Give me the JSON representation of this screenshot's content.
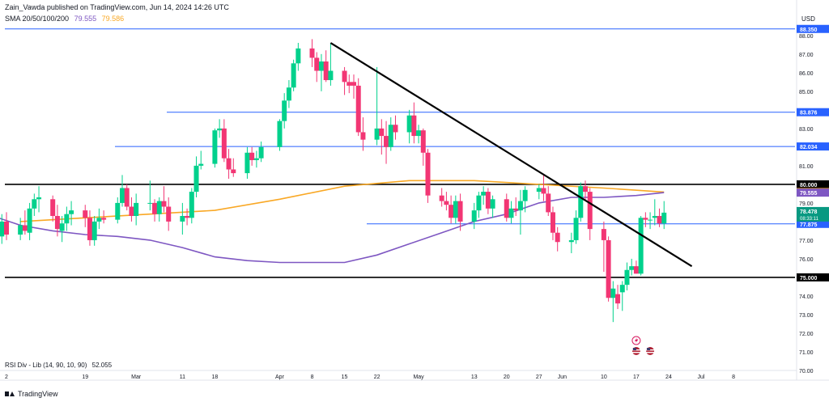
{
  "header": {
    "attribution": "Zain_Vawda published on TradingView.com, Jun 14, 2024 14:26 UTC",
    "sma_label": "SMA 20/50/100/200",
    "sma_value_1": "79.555",
    "sma_value_2": "79.586"
  },
  "indicator": {
    "rsi_label": "RSI Div - Lib (14, 90, 10, 90)",
    "rsi_value": "52.055"
  },
  "footer": {
    "brand": "TradingView"
  },
  "colors": {
    "up": "#26a69a",
    "up_fill": "#00d18c",
    "down": "#f23674",
    "sma_fast": "#7e57c2",
    "sma_slow": "#f9a825",
    "hline_blue": "#2962ff",
    "hline_black": "#000000",
    "price_tag": "#089981"
  },
  "chart_data": {
    "type": "candlestick",
    "currency": "USD",
    "y_range": [
      70.0,
      88.6
    ],
    "y_ticks": [
      70.0,
      71.0,
      72.0,
      73.0,
      74.0,
      75.0,
      76.0,
      77.0,
      78.0,
      79.0,
      80.0,
      81.0,
      82.0,
      83.0,
      84.0,
      85.0,
      86.0,
      87.0,
      88.0
    ],
    "x_ticks": [
      {
        "label": "2",
        "date": "2024-02-02"
      },
      {
        "label": "19",
        "date": "2024-02-19"
      },
      {
        "label": "Mar",
        "date": "2024-03-01"
      },
      {
        "label": "11",
        "date": "2024-03-11"
      },
      {
        "label": "18",
        "date": "2024-03-18"
      },
      {
        "label": "Apr",
        "date": "2024-04-01"
      },
      {
        "label": "8",
        "date": "2024-04-08"
      },
      {
        "label": "15",
        "date": "2024-04-15"
      },
      {
        "label": "22",
        "date": "2024-04-22"
      },
      {
        "label": "May",
        "date": "2024-05-01"
      },
      {
        "label": "13",
        "date": "2024-05-13"
      },
      {
        "label": "20",
        "date": "2024-05-20"
      },
      {
        "label": "27",
        "date": "2024-05-27"
      },
      {
        "label": "Jun",
        "date": "2024-06-01"
      },
      {
        "label": "10",
        "date": "2024-06-10"
      },
      {
        "label": "17",
        "date": "2024-06-17"
      },
      {
        "label": "24",
        "date": "2024-06-24"
      },
      {
        "label": "Jul",
        "date": "2024-07-01"
      },
      {
        "label": "8",
        "date": "2024-07-08"
      }
    ],
    "horizontal_levels": [
      {
        "price": 88.35,
        "label": "88.350",
        "color": "#2962ff"
      },
      {
        "price": 83.876,
        "label": "83.876",
        "color": "#2962ff"
      },
      {
        "price": 82.034,
        "label": "82.034",
        "color": "#2962ff"
      },
      {
        "price": 80.0,
        "label": "80.000",
        "color": "#000000"
      },
      {
        "price": 77.875,
        "label": "77.875",
        "color": "#2962ff"
      },
      {
        "price": 75.0,
        "label": "75.000",
        "color": "#000000"
      }
    ],
    "price_tags": [
      {
        "price": 79.586,
        "label": "79.586",
        "color": "#f9a825"
      },
      {
        "price": 79.555,
        "label": "79.555",
        "color": "#7e57c2"
      },
      {
        "price": 78.478,
        "label": "78.478",
        "sub": "08:33:11",
        "color": "#089981"
      }
    ],
    "trendline": {
      "start": {
        "date": "2024-04-12",
        "price": 87.6
      },
      "end": {
        "date": "2024-06-29",
        "price": 75.6
      }
    },
    "candles": [
      {
        "date": "2024-01-30",
        "o": 78.4,
        "h": 78.8,
        "l": 77.2,
        "c": 77.5
      },
      {
        "date": "2024-01-31",
        "o": 77.5,
        "h": 78.2,
        "l": 76.9,
        "c": 77.2
      },
      {
        "date": "2024-02-01",
        "o": 77.2,
        "h": 78.4,
        "l": 76.8,
        "c": 78.0
      },
      {
        "date": "2024-02-02",
        "o": 78.0,
        "h": 78.5,
        "l": 77.0,
        "c": 77.3
      },
      {
        "date": "2024-02-05",
        "o": 77.3,
        "h": 78.2,
        "l": 77.0,
        "c": 77.8
      },
      {
        "date": "2024-02-06",
        "o": 77.8,
        "h": 78.6,
        "l": 77.3,
        "c": 77.5
      },
      {
        "date": "2024-02-07",
        "o": 77.4,
        "h": 79.0,
        "l": 77.0,
        "c": 78.7
      },
      {
        "date": "2024-02-08",
        "o": 78.7,
        "h": 79.5,
        "l": 78.3,
        "c": 79.2
      },
      {
        "date": "2024-02-09",
        "o": 79.2,
        "h": 79.9,
        "l": 78.5,
        "c": 79.3
      },
      {
        "date": "2024-02-12",
        "o": 79.2,
        "h": 79.4,
        "l": 78.0,
        "c": 78.3
      },
      {
        "date": "2024-02-13",
        "o": 78.3,
        "h": 78.9,
        "l": 77.2,
        "c": 77.6
      },
      {
        "date": "2024-02-14",
        "o": 77.5,
        "h": 78.3,
        "l": 76.9,
        "c": 77.9
      },
      {
        "date": "2024-02-15",
        "o": 77.9,
        "h": 78.8,
        "l": 77.5,
        "c": 78.4
      },
      {
        "date": "2024-02-16",
        "o": 78.4,
        "h": 79.1,
        "l": 77.8,
        "c": 78.6
      },
      {
        "date": "2024-02-19",
        "o": 78.6,
        "h": 78.9,
        "l": 77.7,
        "c": 78.2
      },
      {
        "date": "2024-02-20",
        "o": 78.2,
        "h": 78.6,
        "l": 76.7,
        "c": 77.0
      },
      {
        "date": "2024-02-21",
        "o": 77.0,
        "h": 78.3,
        "l": 76.7,
        "c": 78.0
      },
      {
        "date": "2024-02-22",
        "o": 78.0,
        "h": 78.7,
        "l": 77.6,
        "c": 78.2
      },
      {
        "date": "2024-02-23",
        "o": 78.2,
        "h": 78.6,
        "l": 77.9,
        "c": 78.1
      },
      {
        "date": "2024-02-26",
        "o": 78.1,
        "h": 79.3,
        "l": 77.9,
        "c": 79.0
      },
      {
        "date": "2024-02-27",
        "o": 79.0,
        "h": 80.5,
        "l": 78.8,
        "c": 79.8
      },
      {
        "date": "2024-02-28",
        "o": 79.8,
        "h": 80.0,
        "l": 78.6,
        "c": 78.8
      },
      {
        "date": "2024-02-29",
        "o": 78.8,
        "h": 79.3,
        "l": 78.0,
        "c": 78.3
      },
      {
        "date": "2024-03-01",
        "o": 78.3,
        "h": 79.5,
        "l": 77.8,
        "c": 79.0
      },
      {
        "date": "2024-03-04",
        "o": 79.0,
        "h": 80.2,
        "l": 78.6,
        "c": 79.0
      },
      {
        "date": "2024-03-05",
        "o": 79.0,
        "h": 79.2,
        "l": 78.0,
        "c": 78.4
      },
      {
        "date": "2024-03-06",
        "o": 78.4,
        "h": 79.3,
        "l": 78.0,
        "c": 79.1
      },
      {
        "date": "2024-03-07",
        "o": 79.1,
        "h": 79.9,
        "l": 78.5,
        "c": 78.8
      },
      {
        "date": "2024-03-08",
        "o": 78.8,
        "h": 79.3,
        "l": 77.5,
        "c": 78.0
      },
      {
        "date": "2024-03-11",
        "o": 78.0,
        "h": 79.0,
        "l": 77.3,
        "c": 78.3
      },
      {
        "date": "2024-03-12",
        "o": 78.3,
        "h": 78.7,
        "l": 77.8,
        "c": 78.2
      },
      {
        "date": "2024-03-13",
        "o": 78.2,
        "h": 79.8,
        "l": 77.9,
        "c": 79.6
      },
      {
        "date": "2024-03-14",
        "o": 79.6,
        "h": 81.5,
        "l": 79.3,
        "c": 81.0
      },
      {
        "date": "2024-03-15",
        "o": 81.0,
        "h": 81.8,
        "l": 80.8,
        "c": 81.1
      },
      {
        "date": "2024-03-18",
        "o": 81.1,
        "h": 83.0,
        "l": 80.9,
        "c": 82.9
      },
      {
        "date": "2024-03-19",
        "o": 82.9,
        "h": 83.5,
        "l": 82.5,
        "c": 83.0
      },
      {
        "date": "2024-03-20",
        "o": 83.0,
        "h": 83.5,
        "l": 81.2,
        "c": 81.4
      },
      {
        "date": "2024-03-21",
        "o": 81.4,
        "h": 81.9,
        "l": 80.3,
        "c": 80.8
      },
      {
        "date": "2024-03-22",
        "o": 80.8,
        "h": 81.4,
        "l": 80.4,
        "c": 80.6
      },
      {
        "date": "2024-03-25",
        "o": 80.6,
        "h": 82.0,
        "l": 80.3,
        "c": 81.7
      },
      {
        "date": "2024-03-26",
        "o": 81.7,
        "h": 82.0,
        "l": 81.0,
        "c": 81.3
      },
      {
        "date": "2024-03-27",
        "o": 81.3,
        "h": 81.8,
        "l": 80.9,
        "c": 81.4
      },
      {
        "date": "2024-03-28",
        "o": 81.4,
        "h": 82.3,
        "l": 81.2,
        "c": 82.0
      },
      {
        "date": "2024-04-01",
        "o": 82.0,
        "h": 83.5,
        "l": 81.8,
        "c": 83.4
      },
      {
        "date": "2024-04-02",
        "o": 83.4,
        "h": 84.9,
        "l": 83.0,
        "c": 84.5
      },
      {
        "date": "2024-04-03",
        "o": 84.5,
        "h": 85.6,
        "l": 84.1,
        "c": 85.2
      },
      {
        "date": "2024-04-04",
        "o": 85.2,
        "h": 86.7,
        "l": 85.0,
        "c": 86.5
      },
      {
        "date": "2024-04-05",
        "o": 86.5,
        "h": 87.6,
        "l": 86.1,
        "c": 87.3
      },
      {
        "date": "2024-04-08",
        "o": 87.3,
        "h": 87.8,
        "l": 86.3,
        "c": 86.8
      },
      {
        "date": "2024-04-09",
        "o": 86.8,
        "h": 87.1,
        "l": 85.5,
        "c": 86.1
      },
      {
        "date": "2024-04-10",
        "o": 86.1,
        "h": 87.0,
        "l": 85.0,
        "c": 86.6
      },
      {
        "date": "2024-04-11",
        "o": 86.6,
        "h": 87.2,
        "l": 85.5,
        "c": 85.6
      },
      {
        "date": "2024-04-12",
        "o": 85.6,
        "h": 87.6,
        "l": 85.3,
        "c": 86.1
      },
      {
        "date": "2024-04-15",
        "o": 86.1,
        "h": 86.3,
        "l": 84.8,
        "c": 85.5
      },
      {
        "date": "2024-04-16",
        "o": 85.5,
        "h": 85.9,
        "l": 84.9,
        "c": 85.3
      },
      {
        "date": "2024-04-17",
        "o": 85.5,
        "h": 85.9,
        "l": 84.6,
        "c": 85.3
      },
      {
        "date": "2024-04-18",
        "o": 85.3,
        "h": 85.7,
        "l": 82.6,
        "c": 82.8
      },
      {
        "date": "2024-04-19",
        "o": 82.8,
        "h": 83.6,
        "l": 81.8,
        "c": 82.4
      },
      {
        "date": "2024-04-22",
        "o": 82.4,
        "h": 86.3,
        "l": 82.1,
        "c": 83.0
      },
      {
        "date": "2024-04-23",
        "o": 83.0,
        "h": 83.5,
        "l": 81.6,
        "c": 82.6
      },
      {
        "date": "2024-04-24",
        "o": 82.6,
        "h": 83.4,
        "l": 81.1,
        "c": 82.0
      },
      {
        "date": "2024-04-25",
        "o": 82.0,
        "h": 83.6,
        "l": 81.8,
        "c": 83.2
      },
      {
        "date": "2024-04-26",
        "o": 83.2,
        "h": 83.7,
        "l": 82.4,
        "c": 82.8
      },
      {
        "date": "2024-04-29",
        "o": 82.8,
        "h": 84.0,
        "l": 82.2,
        "c": 83.7
      },
      {
        "date": "2024-04-30",
        "o": 83.7,
        "h": 84.4,
        "l": 82.2,
        "c": 82.6
      },
      {
        "date": "2024-05-01",
        "o": 82.6,
        "h": 83.2,
        "l": 82.2,
        "c": 82.9
      },
      {
        "date": "2024-05-02",
        "o": 82.9,
        "h": 83.0,
        "l": 81.0,
        "c": 81.7
      },
      {
        "date": "2024-05-03",
        "o": 81.7,
        "h": 81.9,
        "l": 79.0,
        "c": 79.4
      },
      {
        "date": "2024-05-06",
        "o": 79.4,
        "h": 79.8,
        "l": 78.8,
        "c": 79.1
      },
      {
        "date": "2024-05-07",
        "o": 79.1,
        "h": 79.6,
        "l": 78.6,
        "c": 78.9
      },
      {
        "date": "2024-05-08",
        "o": 78.9,
        "h": 79.4,
        "l": 77.9,
        "c": 78.2
      },
      {
        "date": "2024-05-09",
        "o": 78.2,
        "h": 79.4,
        "l": 77.9,
        "c": 79.1
      },
      {
        "date": "2024-05-10",
        "o": 79.1,
        "h": 79.5,
        "l": 77.5,
        "c": 78.0
      },
      {
        "date": "2024-05-13",
        "o": 78.0,
        "h": 79.0,
        "l": 77.6,
        "c": 78.6
      },
      {
        "date": "2024-05-14",
        "o": 78.6,
        "h": 79.6,
        "l": 78.2,
        "c": 79.4
      },
      {
        "date": "2024-05-15",
        "o": 79.4,
        "h": 79.9,
        "l": 78.9,
        "c": 79.6
      },
      {
        "date": "2024-05-16",
        "o": 79.6,
        "h": 79.8,
        "l": 78.4,
        "c": 78.7
      },
      {
        "date": "2024-05-17",
        "o": 78.7,
        "h": 79.4,
        "l": 78.2,
        "c": 79.2
      },
      {
        "date": "2024-05-20",
        "o": 79.2,
        "h": 79.5,
        "l": 78.0,
        "c": 78.2
      },
      {
        "date": "2024-05-21",
        "o": 78.2,
        "h": 79.1,
        "l": 77.9,
        "c": 78.7
      },
      {
        "date": "2024-05-22",
        "o": 78.7,
        "h": 79.3,
        "l": 78.3,
        "c": 78.6
      },
      {
        "date": "2024-05-23",
        "o": 78.6,
        "h": 79.7,
        "l": 77.3,
        "c": 79.1
      },
      {
        "date": "2024-05-24",
        "o": 79.1,
        "h": 79.9,
        "l": 78.5,
        "c": 79.7
      },
      {
        "date": "2024-05-27",
        "o": 79.6,
        "h": 80.0,
        "l": 79.2,
        "c": 79.8
      },
      {
        "date": "2024-05-28",
        "o": 79.8,
        "h": 80.5,
        "l": 79.1,
        "c": 79.5
      },
      {
        "date": "2024-05-29",
        "o": 79.5,
        "h": 79.9,
        "l": 78.3,
        "c": 78.5
      },
      {
        "date": "2024-05-30",
        "o": 78.5,
        "h": 78.8,
        "l": 77.0,
        "c": 77.4
      },
      {
        "date": "2024-05-31",
        "o": 77.4,
        "h": 77.7,
        "l": 76.4,
        "c": 76.9
      },
      {
        "date": "2024-06-03",
        "o": 76.9,
        "h": 77.4,
        "l": 76.3,
        "c": 77.0
      },
      {
        "date": "2024-06-04",
        "o": 77.0,
        "h": 78.6,
        "l": 76.8,
        "c": 78.2
      },
      {
        "date": "2024-06-05",
        "o": 78.2,
        "h": 80.1,
        "l": 78.0,
        "c": 79.9
      },
      {
        "date": "2024-06-06",
        "o": 79.9,
        "h": 80.2,
        "l": 79.1,
        "c": 79.6
      },
      {
        "date": "2024-06-07",
        "o": 79.6,
        "h": 79.8,
        "l": 77.0,
        "c": 77.6
      },
      {
        "date": "2024-06-10",
        "o": 77.6,
        "h": 78.0,
        "l": 75.3,
        "c": 77.0
      },
      {
        "date": "2024-06-11",
        "o": 77.0,
        "h": 77.2,
        "l": 73.7,
        "c": 73.9
      },
      {
        "date": "2024-06-12",
        "o": 73.9,
        "h": 74.8,
        "l": 72.6,
        "c": 74.4
      },
      {
        "date": "2024-06-13",
        "o": 74.1,
        "h": 74.6,
        "l": 73.3,
        "c": 73.6
      },
      {
        "date": "2024-06-14",
        "o": 74.2,
        "h": 74.8,
        "l": 73.2,
        "c": 74.6
      },
      {
        "date": "2024-06-15",
        "o": 74.6,
        "h": 75.8,
        "l": 74.3,
        "c": 75.4
      },
      {
        "date": "2024-06-16",
        "o": 75.4,
        "h": 76.0,
        "l": 75.1,
        "c": 75.6
      },
      {
        "date": "2024-06-17",
        "o": 75.6,
        "h": 75.9,
        "l": 75.2,
        "c": 75.2
      },
      {
        "date": "2024-06-18",
        "o": 75.2,
        "h": 78.3,
        "l": 75.1,
        "c": 78.2
      },
      {
        "date": "2024-06-19",
        "o": 78.2,
        "h": 78.5,
        "l": 77.7,
        "c": 78.1
      },
      {
        "date": "2024-06-20",
        "o": 78.1,
        "h": 78.5,
        "l": 77.6,
        "c": 78.1
      },
      {
        "date": "2024-06-21",
        "o": 78.2,
        "h": 79.2,
        "l": 77.8,
        "c": 78.3
      },
      {
        "date": "2024-06-22",
        "o": 78.3,
        "h": 78.7,
        "l": 77.7,
        "c": 77.9
      },
      {
        "date": "2024-06-23",
        "o": 77.9,
        "h": 79.1,
        "l": 77.6,
        "c": 78.478
      }
    ],
    "sma_fast_points": [
      {
        "date": "2024-01-30",
        "v": 78.3
      },
      {
        "date": "2024-02-05",
        "v": 77.8
      },
      {
        "date": "2024-02-12",
        "v": 77.5
      },
      {
        "date": "2024-02-19",
        "v": 77.3
      },
      {
        "date": "2024-02-26",
        "v": 77.2
      },
      {
        "date": "2024-03-04",
        "v": 77.0
      },
      {
        "date": "2024-03-11",
        "v": 76.6
      },
      {
        "date": "2024-03-18",
        "v": 76.1
      },
      {
        "date": "2024-03-25",
        "v": 75.9
      },
      {
        "date": "2024-04-01",
        "v": 75.8
      },
      {
        "date": "2024-04-08",
        "v": 75.8
      },
      {
        "date": "2024-04-15",
        "v": 75.8
      },
      {
        "date": "2024-04-22",
        "v": 76.2
      },
      {
        "date": "2024-04-29",
        "v": 76.8
      },
      {
        "date": "2024-05-06",
        "v": 77.4
      },
      {
        "date": "2024-05-13",
        "v": 78.0
      },
      {
        "date": "2024-05-20",
        "v": 78.4
      },
      {
        "date": "2024-05-27",
        "v": 79.0
      },
      {
        "date": "2024-06-03",
        "v": 79.3
      },
      {
        "date": "2024-06-10",
        "v": 79.3
      },
      {
        "date": "2024-06-17",
        "v": 79.4
      },
      {
        "date": "2024-06-23",
        "v": 79.555
      }
    ],
    "sma_slow_points": [
      {
        "date": "2024-02-05",
        "v": 78.0
      },
      {
        "date": "2024-02-19",
        "v": 78.2
      },
      {
        "date": "2024-03-04",
        "v": 78.4
      },
      {
        "date": "2024-03-18",
        "v": 78.6
      },
      {
        "date": "2024-04-01",
        "v": 79.2
      },
      {
        "date": "2024-04-15",
        "v": 79.9
      },
      {
        "date": "2024-04-29",
        "v": 80.2
      },
      {
        "date": "2024-05-13",
        "v": 80.2
      },
      {
        "date": "2024-05-27",
        "v": 80.0
      },
      {
        "date": "2024-06-10",
        "v": 79.8
      },
      {
        "date": "2024-06-23",
        "v": 79.586
      }
    ]
  }
}
